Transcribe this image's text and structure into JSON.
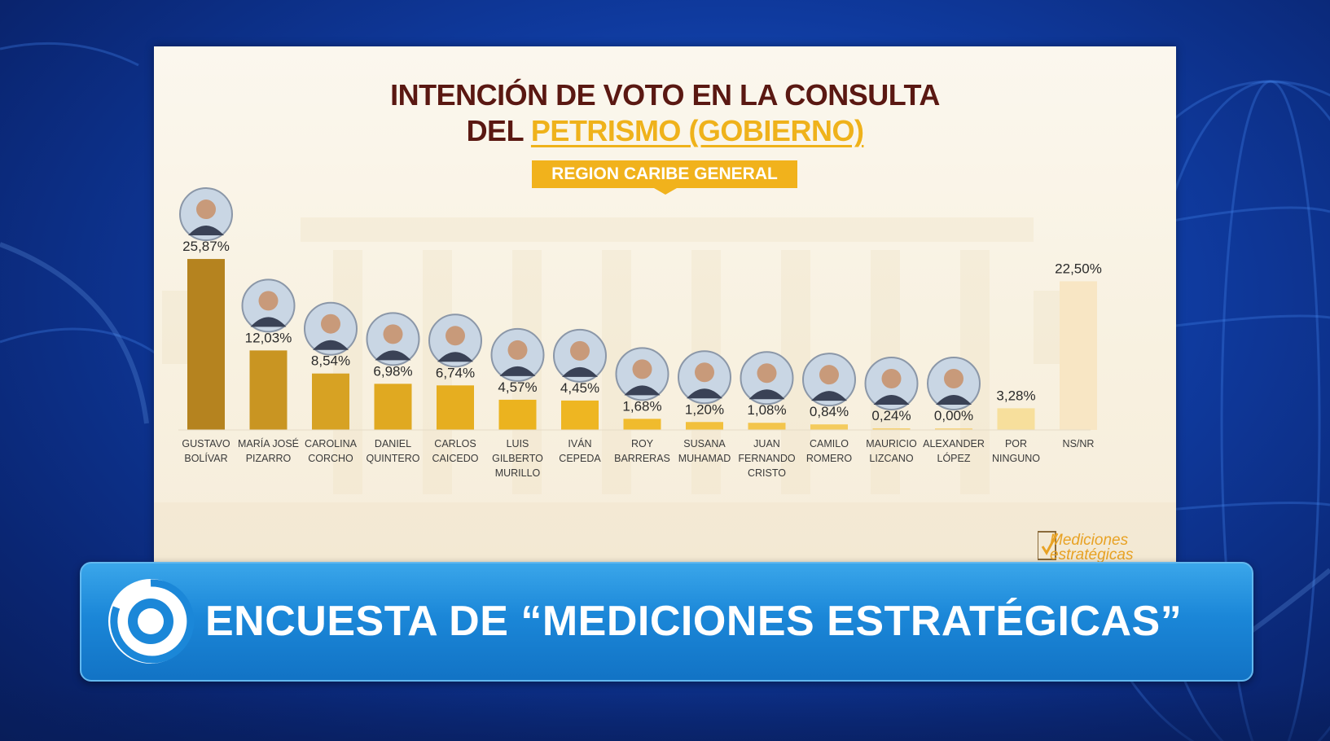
{
  "slide": {
    "title_line1": "INTENCIÓN DE VOTO EN LA CONSULTA",
    "title_line2_prefix": "DEL ",
    "title_line2_highlight": "PETRISMO (GOBIERNO)",
    "region_badge": "REGION CARIBE GENERAL",
    "logo_text_1": "Mediciones",
    "logo_text_2": "estratégicas"
  },
  "banner": {
    "text": "ENCUESTA DE “MEDICIONES ESTRATÉGICAS”"
  },
  "colors": {
    "title": "#5a1812",
    "highlight": "#efb21b",
    "badge": "#f1b21c",
    "banner": "#1b87d8"
  },
  "chart_data": {
    "type": "bar",
    "categories": [
      [
        "GUSTAVO",
        "BOLÍVAR"
      ],
      [
        "MARÍA JOSÉ",
        "PIZARRO"
      ],
      [
        "CAROLINA",
        "CORCHO"
      ],
      [
        "DANIEL",
        "QUINTERO"
      ],
      [
        "CARLOS",
        "CAICEDO"
      ],
      [
        "LUIS",
        "GILBERTO",
        "MURILLO"
      ],
      [
        "IVÁN",
        "CEPEDA"
      ],
      [
        "ROY",
        "BARRERAS"
      ],
      [
        "SUSANA",
        "MUHAMAD"
      ],
      [
        "JUAN",
        "FERNANDO",
        "CRISTO"
      ],
      [
        "CAMILO",
        "ROMERO"
      ],
      [
        "MAURICIO",
        "LIZCANO"
      ],
      [
        "ALEXANDER",
        "LÓPEZ"
      ],
      [
        "POR",
        "NINGUNO"
      ],
      [
        "NS/NR"
      ]
    ],
    "values": [
      25.87,
      12.03,
      8.54,
      6.98,
      6.74,
      4.57,
      4.45,
      1.68,
      1.2,
      1.08,
      0.84,
      0.24,
      0.0,
      3.28,
      22.5
    ],
    "value_labels": [
      "25,87%",
      "12,03%",
      "8,54%",
      "6,98%",
      "6,74%",
      "4,57%",
      "4,45%",
      "1,68%",
      "1,20%",
      "1,08%",
      "0,84%",
      "0,24%",
      "0,00%",
      "3,28%",
      "22,50%"
    ],
    "has_photo": [
      true,
      true,
      true,
      true,
      true,
      true,
      true,
      true,
      true,
      true,
      true,
      true,
      true,
      false,
      false
    ],
    "bar_colors": [
      "#b5831f",
      "#c99522",
      "#d7a223",
      "#e0a921",
      "#e6ae20",
      "#ebb31f",
      "#eeb622",
      "#f0bb2d",
      "#f2c03c",
      "#f3c54c",
      "#f4cb5e",
      "#f5d070",
      "#f6d583",
      "#f7df9c",
      "#f8e6c4"
    ],
    "ylim": [
      0,
      26
    ],
    "grid": false,
    "legend": "none"
  }
}
